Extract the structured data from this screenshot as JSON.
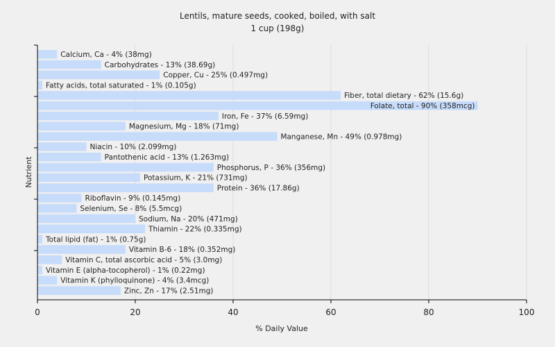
{
  "chart_data": {
    "type": "bar",
    "orientation": "horizontal",
    "title": "Lentils, mature seeds, cooked, boiled, with salt",
    "subtitle": "1 cup (198g)",
    "xlabel": "% Daily Value",
    "ylabel": "Nutrient",
    "xlim": [
      0,
      100
    ],
    "xticks": [
      0,
      20,
      40,
      60,
      80,
      100
    ],
    "grid": true,
    "bar_color": "#c6dcfa",
    "categories": [
      "Calcium, Ca",
      "Carbohydrates",
      "Copper, Cu",
      "Fatty acids, total saturated",
      "Fiber, total dietary",
      "Folate, total",
      "Iron, Fe",
      "Magnesium, Mg",
      "Manganese, Mn",
      "Niacin",
      "Pantothenic acid",
      "Phosphorus, P",
      "Potassium, K",
      "Protein",
      "Riboflavin",
      "Selenium, Se",
      "Sodium, Na",
      "Thiamin",
      "Total lipid (fat)",
      "Vitamin B-6",
      "Vitamin C, total ascorbic acid",
      "Vitamin E (alpha-tocopherol)",
      "Vitamin K (phylloquinone)",
      "Zinc, Zn"
    ],
    "values": [
      4,
      13,
      25,
      1,
      62,
      90,
      37,
      18,
      49,
      10,
      13,
      36,
      21,
      36,
      9,
      8,
      20,
      22,
      1,
      18,
      5,
      1,
      4,
      17
    ],
    "labels": [
      "Calcium, Ca - 4% (38mg)",
      "Carbohydrates - 13% (38.69g)",
      "Copper, Cu - 25% (0.497mg)",
      "Fatty acids, total saturated - 1% (0.105g)",
      "Fiber, total dietary - 62% (15.6g)",
      "Folate, total - 90% (358mcg)",
      "Iron, Fe - 37% (6.59mg)",
      "Magnesium, Mg - 18% (71mg)",
      "Manganese, Mn - 49% (0.978mg)",
      "Niacin - 10% (2.099mg)",
      "Pantothenic acid - 13% (1.263mg)",
      "Phosphorus, P - 36% (356mg)",
      "Potassium, K - 21% (731mg)",
      "Protein - 36% (17.86g)",
      "Riboflavin - 9% (0.145mg)",
      "Selenium, Se - 8% (5.5mcg)",
      "Sodium, Na - 20% (471mg)",
      "Thiamin - 22% (0.335mg)",
      "Total lipid (fat) - 1% (0.75g)",
      "Vitamin B-6 - 18% (0.352mg)",
      "Vitamin C, total ascorbic acid - 5% (3.0mg)",
      "Vitamin E (alpha-tocopherol) - 1% (0.22mg)",
      "Vitamin K (phylloquinone) - 4% (3.4mcg)",
      "Zinc, Zn - 17% (2.51mg)"
    ]
  }
}
